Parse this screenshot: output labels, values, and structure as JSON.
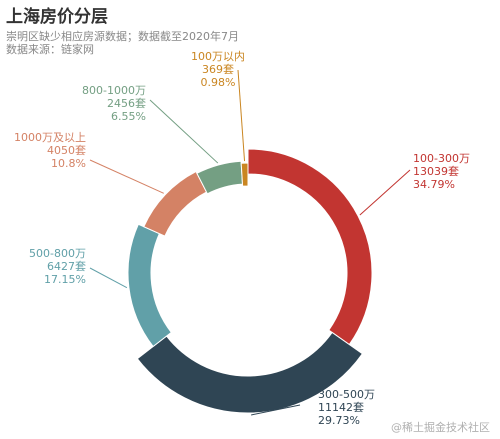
{
  "page": {
    "title": "上海房价分层",
    "subtitle_line1": "崇明区缺少相应房源数据；数据截至2020年7月",
    "subtitle_line2": "数据来源：链家网",
    "watermark": "@稀土掘金技术社区"
  },
  "chart_data": {
    "type": "pie",
    "variant": "donut",
    "title": "上海房价分层",
    "subtitle": "崇明区缺少相应房源数据；数据截至2020年7月 / 数据来源：链家网",
    "unit": "套",
    "slices": [
      {
        "name": "100-300万",
        "value": 13039,
        "percent": "34.79%",
        "color": "#c23531"
      },
      {
        "name": "300-500万",
        "value": 11142,
        "percent": "29.73%",
        "color": "#2f4554"
      },
      {
        "name": "500-800万",
        "value": 6427,
        "percent": "17.15%",
        "color": "#61a0a8"
      },
      {
        "name": "1000万及以上",
        "value": 4050,
        "percent": "10.8%",
        "color": "#d48265"
      },
      {
        "name": "800-1000万",
        "value": 2456,
        "percent": "6.55%",
        "color": "#749f83"
      },
      {
        "name": "100万以内",
        "value": 369,
        "percent": "0.98%",
        "color": "#ca8622"
      }
    ]
  }
}
